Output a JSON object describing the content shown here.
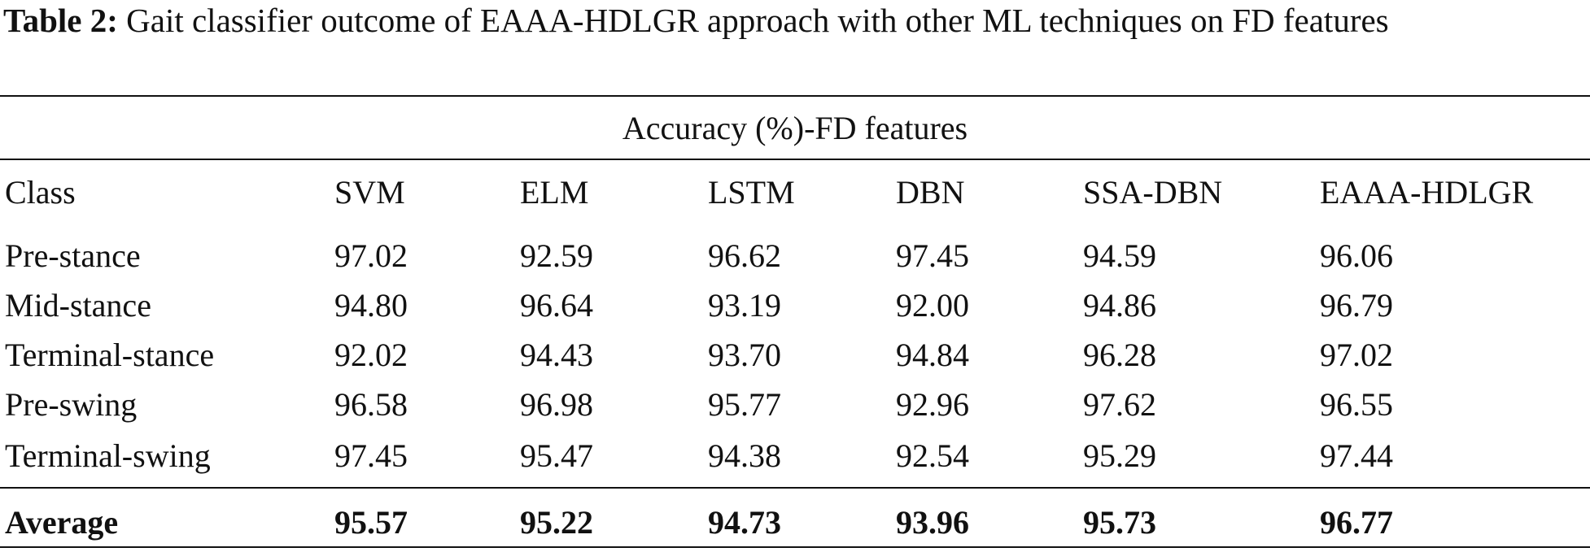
{
  "caption": {
    "label": "Table 2:",
    "text": "Gait classifier outcome of EAAA-HDLGR approach with other ML techniques on FD features"
  },
  "table": {
    "group_header": "Accuracy (%)-FD features",
    "columns": [
      "Class",
      "SVM",
      "ELM",
      "LSTM",
      "DBN",
      "SSA-DBN",
      "EAAA-HDLGR"
    ],
    "rows": [
      [
        "Pre-stance",
        "97.02",
        "92.59",
        "96.62",
        "97.45",
        "94.59",
        "96.06"
      ],
      [
        "Mid-stance",
        "94.80",
        "96.64",
        "93.19",
        "92.00",
        "94.86",
        "96.79"
      ],
      [
        "Terminal-stance",
        "92.02",
        "94.43",
        "93.70",
        "94.84",
        "96.28",
        "97.02"
      ],
      [
        "Pre-swing",
        "96.58",
        "96.98",
        "95.77",
        "92.96",
        "97.62",
        "96.55"
      ],
      [
        "Terminal-swing",
        "97.45",
        "95.47",
        "94.38",
        "92.54",
        "95.29",
        "97.44"
      ]
    ],
    "footer": [
      "Average",
      "95.57",
      "95.22",
      "94.73",
      "93.96",
      "95.73",
      "96.77"
    ]
  }
}
